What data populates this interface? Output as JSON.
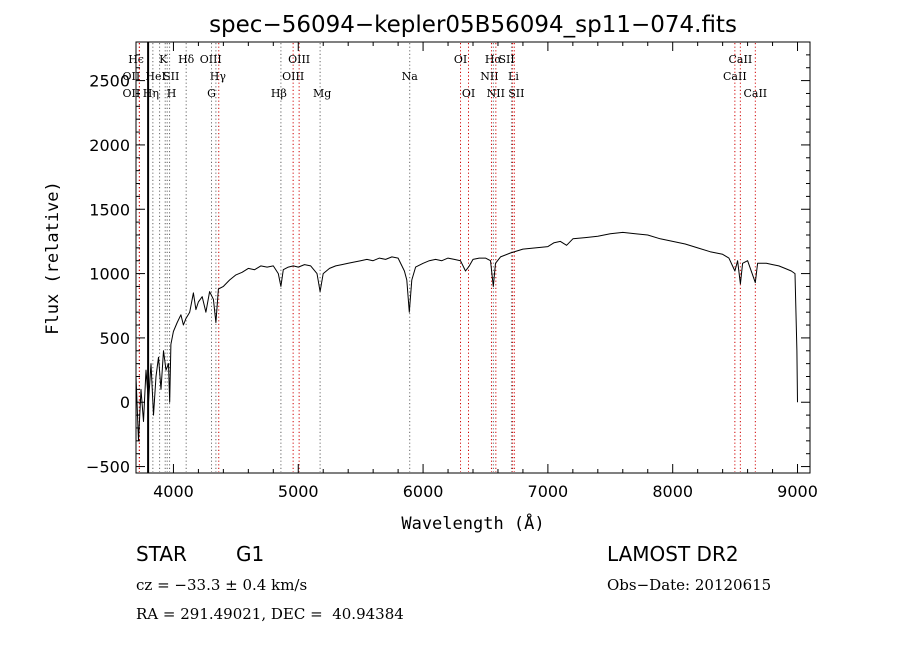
{
  "chart_data": {
    "type": "line",
    "title": "spec−56094−kepler05B56094_sp11−074.fits",
    "xlabel": "Wavelength (Å)",
    "ylabel": "Flux (relative)",
    "xlim": [
      3700,
      9100
    ],
    "ylim": [
      -550,
      2800
    ],
    "x_ticks": [
      4000,
      5000,
      6000,
      7000,
      8000,
      9000
    ],
    "y_ticks": [
      -500,
      0,
      500,
      1000,
      1500,
      2000,
      2500
    ],
    "series": [
      {
        "points": [
          [
            3700,
            200
          ],
          [
            3720,
            -300
          ],
          [
            3740,
            100
          ],
          [
            3760,
            -150
          ],
          [
            3780,
            250
          ],
          [
            3800,
            0
          ],
          [
            3820,
            300
          ],
          [
            3840,
            -100
          ],
          [
            3860,
            200
          ],
          [
            3880,
            350
          ],
          [
            3900,
            100
          ],
          [
            3920,
            400
          ],
          [
            3940,
            250
          ],
          [
            3960,
            300
          ],
          [
            3970,
            0
          ],
          [
            3980,
            450
          ],
          [
            4000,
            550
          ],
          [
            4030,
            620
          ],
          [
            4060,
            680
          ],
          [
            4080,
            600
          ],
          [
            4100,
            650
          ],
          [
            4130,
            700
          ],
          [
            4160,
            850
          ],
          [
            4180,
            720
          ],
          [
            4200,
            780
          ],
          [
            4230,
            820
          ],
          [
            4260,
            700
          ],
          [
            4290,
            860
          ],
          [
            4320,
            800
          ],
          [
            4340,
            620
          ],
          [
            4360,
            880
          ],
          [
            4400,
            900
          ],
          [
            4450,
            950
          ],
          [
            4500,
            990
          ],
          [
            4550,
            1010
          ],
          [
            4600,
            1040
          ],
          [
            4650,
            1030
          ],
          [
            4700,
            1060
          ],
          [
            4750,
            1050
          ],
          [
            4800,
            1060
          ],
          [
            4840,
            1000
          ],
          [
            4861,
            900
          ],
          [
            4880,
            1030
          ],
          [
            4920,
            1050
          ],
          [
            4960,
            1060
          ],
          [
            5000,
            1050
          ],
          [
            5050,
            1070
          ],
          [
            5100,
            1060
          ],
          [
            5150,
            1000
          ],
          [
            5175,
            860
          ],
          [
            5200,
            1000
          ],
          [
            5250,
            1040
          ],
          [
            5300,
            1060
          ],
          [
            5350,
            1070
          ],
          [
            5400,
            1080
          ],
          [
            5450,
            1090
          ],
          [
            5500,
            1100
          ],
          [
            5550,
            1110
          ],
          [
            5600,
            1100
          ],
          [
            5650,
            1120
          ],
          [
            5700,
            1110
          ],
          [
            5750,
            1130
          ],
          [
            5800,
            1120
          ],
          [
            5850,
            1020
          ],
          [
            5870,
            950
          ],
          [
            5890,
            700
          ],
          [
            5910,
            950
          ],
          [
            5940,
            1050
          ],
          [
            6000,
            1080
          ],
          [
            6050,
            1100
          ],
          [
            6100,
            1110
          ],
          [
            6150,
            1100
          ],
          [
            6200,
            1120
          ],
          [
            6250,
            1110
          ],
          [
            6300,
            1100
          ],
          [
            6340,
            1020
          ],
          [
            6370,
            1060
          ],
          [
            6400,
            1110
          ],
          [
            6450,
            1120
          ],
          [
            6500,
            1120
          ],
          [
            6540,
            1100
          ],
          [
            6563,
            900
          ],
          [
            6580,
            1080
          ],
          [
            6620,
            1130
          ],
          [
            6700,
            1160
          ],
          [
            6800,
            1190
          ],
          [
            6900,
            1200
          ],
          [
            7000,
            1210
          ],
          [
            7050,
            1240
          ],
          [
            7100,
            1250
          ],
          [
            7150,
            1220
          ],
          [
            7200,
            1270
          ],
          [
            7300,
            1280
          ],
          [
            7400,
            1290
          ],
          [
            7500,
            1310
          ],
          [
            7600,
            1320
          ],
          [
            7700,
            1310
          ],
          [
            7800,
            1300
          ],
          [
            7900,
            1270
          ],
          [
            8000,
            1250
          ],
          [
            8100,
            1230
          ],
          [
            8200,
            1200
          ],
          [
            8300,
            1170
          ],
          [
            8400,
            1150
          ],
          [
            8450,
            1120
          ],
          [
            8498,
            1020
          ],
          [
            8520,
            1100
          ],
          [
            8542,
            920
          ],
          [
            8560,
            1080
          ],
          [
            8600,
            1100
          ],
          [
            8662,
            930
          ],
          [
            8680,
            1080
          ],
          [
            8750,
            1080
          ],
          [
            8800,
            1070
          ],
          [
            8850,
            1060
          ],
          [
            8900,
            1040
          ],
          [
            8950,
            1020
          ],
          [
            8980,
            1000
          ],
          [
            8995,
            400
          ],
          [
            9000,
            0
          ]
        ]
      }
    ],
    "lines": [
      {
        "label": "Hϵ",
        "wl": 3797,
        "row": 0,
        "dx": -12,
        "color": "#666666"
      },
      {
        "label": "OII",
        "wl": 3727,
        "row": 1,
        "dx": -8,
        "color": "#d00000"
      },
      {
        "label": "OII",
        "wl": 3727,
        "row": 2,
        "dx": -8,
        "color": "#d00000"
      },
      {
        "label": "Hη",
        "wl": 3835,
        "row": 2,
        "dx": -2,
        "color": "#666666"
      },
      {
        "label": "HeI",
        "wl": 3889,
        "row": 1,
        "dx": -4,
        "color": "#666666"
      },
      {
        "label": "K",
        "wl": 3934,
        "row": 0,
        "dx": -2,
        "color": "#666666"
      },
      {
        "label": "SII",
        "wl": 3950,
        "row": 1,
        "dx": 4,
        "color": "#666666"
      },
      {
        "label": "H",
        "wl": 3969,
        "row": 2,
        "dx": 2,
        "color": "#666666"
      },
      {
        "label": "Hδ",
        "wl": 4102,
        "row": 0,
        "dx": 0,
        "color": "#666666"
      },
      {
        "label": "OIII",
        "wl": 4363,
        "row": 0,
        "dx": -8,
        "color": "#d00000"
      },
      {
        "label": "Hγ",
        "wl": 4340,
        "row": 1,
        "dx": 2,
        "color": "#666666"
      },
      {
        "label": "G",
        "wl": 4305,
        "row": 2,
        "dx": 0,
        "color": "#666666"
      },
      {
        "label": "OIII",
        "wl": 5007,
        "row": 0,
        "dx": 0,
        "color": "#d00000"
      },
      {
        "label": "OIII",
        "wl": 4959,
        "row": 1,
        "dx": 0,
        "color": "#d00000"
      },
      {
        "label": "Hβ",
        "wl": 4861,
        "row": 2,
        "dx": -2,
        "color": "#666666"
      },
      {
        "label": "Mg",
        "wl": 5175,
        "row": 2,
        "dx": 2,
        "color": "#666666"
      },
      {
        "label": "Na",
        "wl": 5893,
        "row": 1,
        "dx": 0,
        "color": "#666666"
      },
      {
        "label": "OI",
        "wl": 6300,
        "row": 0,
        "dx": 0,
        "color": "#d00000"
      },
      {
        "label": "OI",
        "wl": 6364,
        "row": 2,
        "dx": 0,
        "color": "#d00000"
      },
      {
        "label": "Hα",
        "wl": 6563,
        "row": 0,
        "dx": 0,
        "color": "#666666"
      },
      {
        "label": "SII",
        "wl": 6717,
        "row": 0,
        "dx": -6,
        "color": "#d00000"
      },
      {
        "label": "NII",
        "wl": 6548,
        "row": 1,
        "dx": -2,
        "color": "#d00000"
      },
      {
        "label": "Li",
        "wl": 6708,
        "row": 1,
        "dx": 2,
        "color": "#666666"
      },
      {
        "label": "NII",
        "wl": 6583,
        "row": 2,
        "dx": 0,
        "color": "#d00000"
      },
      {
        "label": "SII",
        "wl": 6731,
        "row": 2,
        "dx": 2,
        "color": "#d00000"
      },
      {
        "label": "CaII",
        "wl": 8542,
        "row": 0,
        "dx": 0,
        "color": "#d00000"
      },
      {
        "label": "CaII",
        "wl": 8498,
        "row": 1,
        "dx": 0,
        "color": "#d00000"
      },
      {
        "label": "CaII",
        "wl": 8662,
        "row": 2,
        "dx": 0,
        "color": "#d00000"
      }
    ],
    "cutoff_wavelength": 3797
  },
  "info": {
    "object_type": "STAR",
    "subclass": "G1",
    "survey": "LAMOST DR2",
    "cz": "cz = −33.3 ± 0.4 km/s",
    "obs_date": "Obs−Date: 20120615",
    "coords": "RA = 291.49021, DEC =  40.94384"
  }
}
